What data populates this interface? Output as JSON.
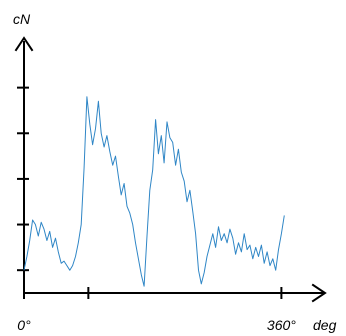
{
  "chart_data": {
    "type": "line",
    "ylabel": "cN",
    "xlabel": "deg",
    "x_ticks": [
      {
        "value": 0,
        "label": "0°"
      },
      {
        "value": 90,
        "label": ""
      },
      {
        "value": 360,
        "label": "360°"
      }
    ],
    "xlim": [
      0,
      400
    ],
    "ylim": [
      0,
      11
    ],
    "y_ticks": [
      1,
      3,
      5,
      7,
      9
    ],
    "grid": false,
    "series": [
      {
        "color": "#2f86c6",
        "x": [
          0,
          4,
          8,
          12,
          16,
          20,
          24,
          28,
          32,
          36,
          40,
          44,
          48,
          52,
          56,
          60,
          64,
          68,
          72,
          76,
          80,
          84,
          88,
          92,
          96,
          100,
          104,
          108,
          112,
          116,
          120,
          124,
          128,
          132,
          136,
          140,
          144,
          148,
          152,
          156,
          160,
          164,
          168,
          172,
          176,
          180,
          184,
          188,
          192,
          196,
          200,
          204,
          208,
          212,
          216,
          220,
          224,
          228,
          232,
          236,
          240,
          244,
          248,
          252,
          256,
          260,
          264,
          268,
          272,
          276,
          280,
          284,
          288,
          292,
          296,
          300,
          304,
          308,
          312,
          316,
          320,
          324,
          328,
          332,
          336,
          340,
          344,
          348,
          352,
          356,
          360,
          364
        ],
        "y": [
          1.0,
          1.6,
          2.3,
          3.2,
          3.0,
          2.5,
          3.1,
          2.8,
          2.3,
          2.7,
          2.0,
          2.4,
          1.8,
          1.3,
          1.4,
          1.2,
          1.0,
          1.2,
          1.6,
          2.2,
          3.0,
          5.5,
          8.6,
          7.4,
          6.5,
          7.2,
          8.4,
          7.0,
          6.4,
          6.9,
          6.2,
          5.6,
          6.0,
          5.1,
          4.3,
          4.8,
          3.8,
          3.5,
          3.0,
          2.2,
          1.5,
          0.8,
          0.3,
          2.5,
          4.5,
          5.4,
          7.6,
          6.1,
          6.9,
          5.7,
          7.5,
          6.8,
          6.6,
          5.6,
          6.3,
          5.3,
          4.9,
          4.0,
          4.5,
          3.6,
          2.6,
          1.0,
          0.4,
          0.9,
          1.6,
          2.1,
          2.6,
          2.0,
          2.9,
          2.3,
          2.6,
          2.2,
          2.8,
          2.4,
          1.7,
          2.2,
          1.8,
          2.6,
          1.9,
          2.1,
          1.5,
          2.0,
          1.6,
          2.1,
          1.3,
          1.8,
          1.2,
          1.5,
          1.0,
          1.9,
          2.6,
          3.4
        ]
      }
    ]
  }
}
